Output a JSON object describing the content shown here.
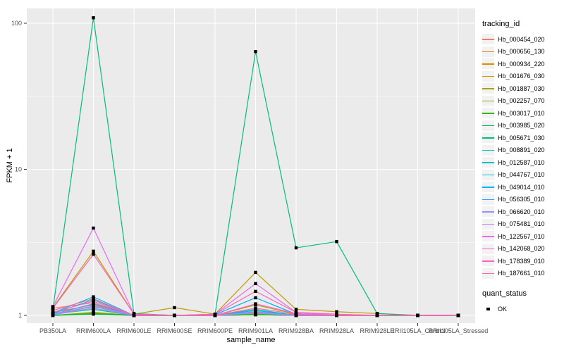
{
  "figure": {
    "background": "#FFFFFF",
    "panel_background": "#EBEBEB",
    "gridline_color": "#FFFFFF",
    "tick_color": "#333333",
    "tick_label_color": "#4D4D4D",
    "marker_color": "#000000"
  },
  "axes": {
    "x": {
      "title": "sample_name",
      "tick_labels": [
        "PB350LA",
        "RRIM600LA",
        "RRIM600LE",
        "RRIM600SE",
        "RRIM600PE",
        "RRIM901LA",
        "RRIM928BA",
        "RRIM928LA",
        "RRIM928LE",
        "RRII105LA_Control",
        "RRII105LA_Stressed"
      ]
    },
    "y": {
      "title": "FPKM + 1",
      "scale": "log10",
      "tick_labels": [
        "1",
        "10",
        "100"
      ],
      "major_values": [
        1,
        10,
        100
      ],
      "minor_values": [
        3.1623,
        31.623
      ]
    }
  },
  "legend": {
    "tracking_title": "tracking_id",
    "quant_title": "quant_status",
    "quant_items": [
      {
        "label": "OK",
        "marker": "black-square"
      }
    ]
  },
  "chart_data": {
    "type": "line",
    "title": "",
    "xlabel": "sample_name",
    "ylabel": "FPKM + 1",
    "y_scale": "log10",
    "ylim": [
      0.89,
      126
    ],
    "grid": "white-on-gray",
    "legend_position": "right",
    "x_categories": [
      "PB350LA",
      "RRIM600LA",
      "RRIM600LE",
      "RRIM600SE",
      "RRIM600PE",
      "RRIM901LA",
      "RRIM928BA",
      "RRIM928LA",
      "RRIM928LE",
      "RRII105LA_Control",
      "RRII105LA_Stressed"
    ],
    "point_marker": "black-square (quant_status = OK)",
    "series": [
      {
        "name": "Hb_000454_020",
        "color": "#F8766D",
        "values": [
          1.12,
          1.22,
          1.0,
          1.0,
          1.0,
          1.05,
          1.0,
          1.0,
          1.0,
          1.0,
          1.0
        ]
      },
      {
        "name": "Hb_000656_130",
        "color": "#EA8331",
        "values": [
          1.05,
          1.18,
          1.0,
          1.0,
          1.0,
          1.04,
          1.0,
          1.0,
          1.0,
          1.0,
          1.0
        ]
      },
      {
        "name": "Hb_000934_220",
        "color": "#D89000",
        "values": [
          1.02,
          1.12,
          1.0,
          1.0,
          1.0,
          1.03,
          1.02,
          1.0,
          1.0,
          1.0,
          1.0
        ]
      },
      {
        "name": "Hb_001676_030",
        "color": "#C09B00",
        "values": [
          1.13,
          2.75,
          1.02,
          1.13,
          1.02,
          1.97,
          1.1,
          1.06,
          1.03,
          1.0,
          1.0
        ]
      },
      {
        "name": "Hb_001887_030",
        "color": "#A3A500",
        "values": [
          1.0,
          1.05,
          1.0,
          1.0,
          1.0,
          1.18,
          1.02,
          1.0,
          1.0,
          1.0,
          1.0
        ]
      },
      {
        "name": "Hb_002257_070",
        "color": "#7CAE00",
        "values": [
          1.0,
          1.04,
          1.0,
          1.0,
          1.0,
          1.02,
          1.0,
          1.0,
          1.0,
          1.0,
          1.0
        ]
      },
      {
        "name": "Hb_003017_010",
        "color": "#39B600",
        "values": [
          1.0,
          1.03,
          1.0,
          1.0,
          1.0,
          1.01,
          1.0,
          1.0,
          1.0,
          1.0,
          1.0
        ]
      },
      {
        "name": "Hb_003985_020",
        "color": "#00BB4E",
        "values": [
          1.0,
          1.02,
          1.0,
          1.0,
          1.0,
          1.01,
          1.0,
          1.0,
          1.0,
          1.0,
          1.0
        ]
      },
      {
        "name": "Hb_005671_030",
        "color": "#00BF7D",
        "values": [
          1.1,
          109,
          1.03,
          1.0,
          1.02,
          64,
          2.9,
          3.2,
          1.03,
          1.0,
          1.0
        ]
      },
      {
        "name": "Hb_008891_020",
        "color": "#00C1A3",
        "values": [
          1.02,
          1.1,
          1.0,
          1.0,
          1.0,
          1.05,
          1.0,
          1.0,
          1.0,
          1.0,
          1.0
        ]
      },
      {
        "name": "Hb_012587_010",
        "color": "#00BFC4",
        "values": [
          1.03,
          1.28,
          1.0,
          1.0,
          1.0,
          1.08,
          1.0,
          1.0,
          1.0,
          1.0,
          1.0
        ]
      },
      {
        "name": "Hb_044767_010",
        "color": "#00BAE0",
        "values": [
          1.02,
          1.15,
          1.0,
          1.0,
          1.0,
          1.1,
          1.0,
          1.0,
          1.0,
          1.0,
          1.0
        ]
      },
      {
        "name": "Hb_049014_010",
        "color": "#00B0F6",
        "values": [
          1.04,
          1.34,
          1.0,
          1.0,
          1.01,
          1.32,
          1.02,
          1.0,
          1.0,
          1.0,
          1.0
        ]
      },
      {
        "name": "Hb_056305_010",
        "color": "#35A2FF",
        "values": [
          1.02,
          1.2,
          1.0,
          1.0,
          1.0,
          1.06,
          1.0,
          1.0,
          1.0,
          1.0,
          1.0
        ]
      },
      {
        "name": "Hb_066620_010",
        "color": "#9590FF",
        "values": [
          1.01,
          1.12,
          1.0,
          1.0,
          1.0,
          1.04,
          1.0,
          1.0,
          1.0,
          1.0,
          1.0
        ]
      },
      {
        "name": "Hb_075481_010",
        "color": "#C77CFF",
        "values": [
          1.02,
          1.16,
          1.0,
          1.0,
          1.0,
          1.05,
          1.0,
          1.0,
          1.0,
          1.0,
          1.0
        ]
      },
      {
        "name": "Hb_122567_010",
        "color": "#E76BF3",
        "values": [
          1.15,
          3.96,
          1.02,
          1.0,
          1.02,
          1.65,
          1.05,
          1.0,
          1.0,
          1.0,
          1.0
        ]
      },
      {
        "name": "Hb_142068_020",
        "color": "#FA62DB",
        "values": [
          1.05,
          1.25,
          1.0,
          1.0,
          1.0,
          1.2,
          1.03,
          1.0,
          1.0,
          1.0,
          1.0
        ]
      },
      {
        "name": "Hb_178389_010",
        "color": "#FF62BC",
        "values": [
          1.12,
          2.62,
          1.02,
          1.0,
          1.02,
          1.46,
          1.05,
          1.02,
          1.0,
          1.0,
          1.0
        ]
      },
      {
        "name": "Hb_187661_010",
        "color": "#FF6A98",
        "values": [
          1.08,
          1.3,
          1.0,
          1.0,
          1.0,
          1.12,
          1.02,
          1.0,
          1.0,
          1.0,
          1.0
        ]
      }
    ]
  }
}
